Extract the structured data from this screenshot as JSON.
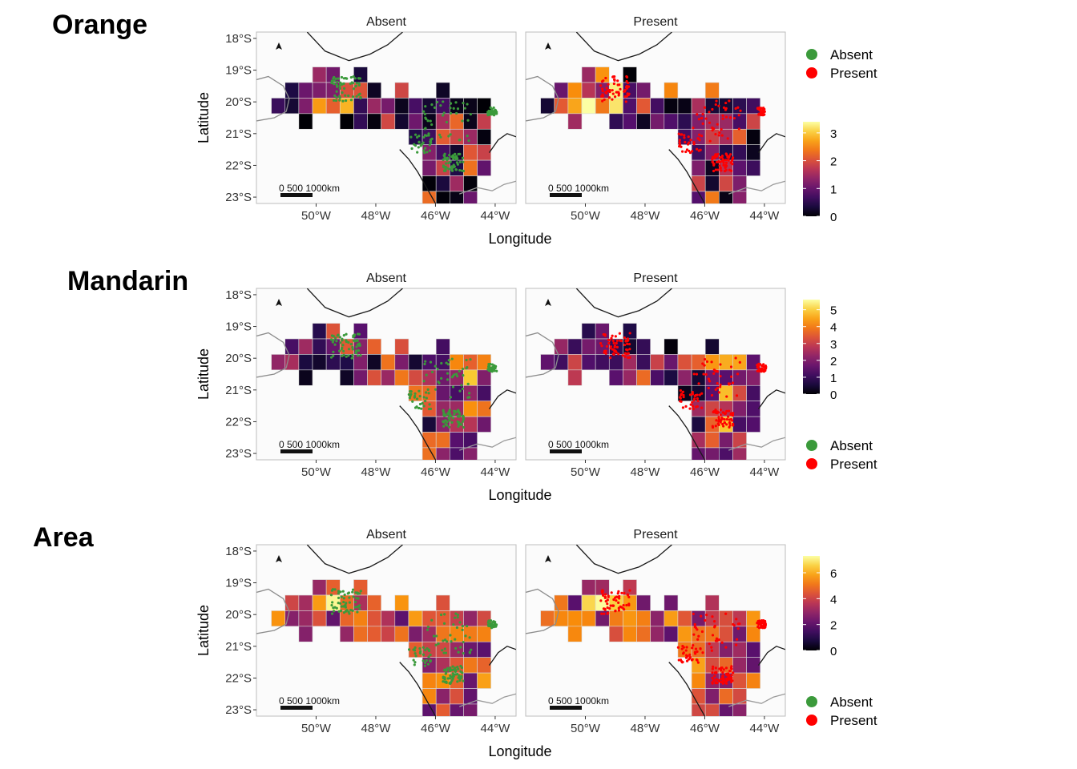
{
  "chart_data": [
    {
      "type": "heatmap",
      "title": "Orange",
      "xlabel": "Longitude",
      "ylabel": "Latitude",
      "facets": [
        "Absent",
        "Present"
      ],
      "x_ticks": [
        "50°W",
        "48°W",
        "46°W",
        "44°W"
      ],
      "y_ticks": [
        "18°S",
        "19°S",
        "20°S",
        "21°S",
        "22°S",
        "23°S"
      ],
      "xlim": [
        -52,
        -43.3
      ],
      "ylim": [
        -23.2,
        -17.8
      ],
      "colorbar": {
        "min": 0,
        "max": 3.4,
        "ticks": [
          "0",
          "1",
          "2",
          "3"
        ]
      },
      "legend": {
        "entries": [
          "Absent",
          "Present"
        ],
        "colors": [
          "#3b9a3b",
          "#ff0000"
        ],
        "placement": "right-top"
      },
      "scalebar": {
        "label": "0  500  1000km"
      },
      "colorbar_placement": "right-bottom"
    },
    {
      "type": "heatmap",
      "title": "Mandarin",
      "xlabel": "Longitude",
      "ylabel": "Latitude",
      "facets": [
        "Absent",
        "Present"
      ],
      "x_ticks": [
        "50°W",
        "48°W",
        "46°W",
        "44°W"
      ],
      "y_ticks": [
        "18°S",
        "19°S",
        "20°S",
        "21°S",
        "22°S",
        "23°S"
      ],
      "xlim": [
        -52,
        -43.3
      ],
      "ylim": [
        -23.2,
        -17.8
      ],
      "colorbar": {
        "min": 0,
        "max": 5.6,
        "ticks": [
          "0",
          "1",
          "2",
          "3",
          "4",
          "5"
        ]
      },
      "legend": {
        "entries": [
          "Absent",
          "Present"
        ],
        "colors": [
          "#3b9a3b",
          "#ff0000"
        ],
        "placement": "right-bottom"
      },
      "scalebar": {
        "label": "0  500  1000km"
      },
      "colorbar_placement": "right-top"
    },
    {
      "type": "heatmap",
      "title": "Area",
      "xlabel": "Longitude",
      "ylabel": "Latitude",
      "facets": [
        "Absent",
        "Present"
      ],
      "x_ticks": [
        "50°W",
        "48°W",
        "46°W",
        "44°W"
      ],
      "y_ticks": [
        "18°S",
        "19°S",
        "20°S",
        "21°S",
        "22°S",
        "23°S"
      ],
      "xlim": [
        -52,
        -43.3
      ],
      "ylim": [
        -23.2,
        -17.8
      ],
      "colorbar": {
        "min": 0,
        "max": 7.3,
        "ticks": [
          "0",
          "2",
          "4",
          "6"
        ]
      },
      "legend": {
        "entries": [
          "Absent",
          "Present"
        ],
        "colors": [
          "#3b9a3b",
          "#ff0000"
        ],
        "placement": "right-bottom"
      },
      "scalebar": {
        "label": "0  500  1000km"
      },
      "colorbar_placement": "right-top"
    }
  ]
}
